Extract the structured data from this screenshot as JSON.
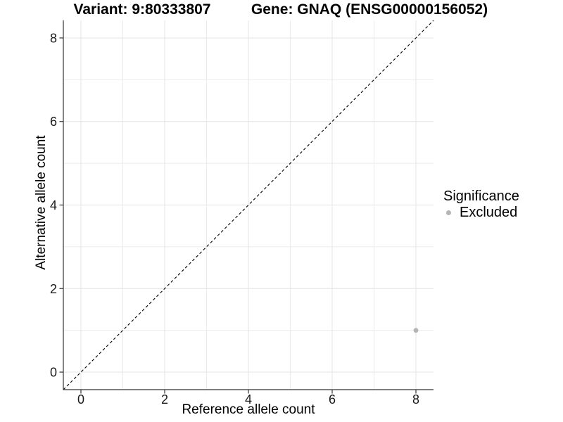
{
  "header": {
    "variant_title": "Variant: 9:80333807",
    "gene_title": "Gene: GNAQ (ENSG00000156052)"
  },
  "chart_data": {
    "type": "scatter",
    "title": "Variant: 9:80333807 — Gene: GNAQ (ENSG00000156052)",
    "xlabel": "Reference allele count",
    "ylabel": "Alternative allele count",
    "xlim": [
      -0.42,
      8.42
    ],
    "ylim": [
      -0.42,
      8.42
    ],
    "x_ticks": [
      0,
      2,
      4,
      6,
      8
    ],
    "y_ticks": [
      0,
      2,
      4,
      6,
      8
    ],
    "x_minor_gridlines": [
      1,
      3,
      5,
      7
    ],
    "y_minor_gridlines": [
      1,
      3,
      5,
      7
    ],
    "grid": true,
    "identity_line": {
      "equation": "y = x",
      "style": "dashed",
      "color": "#000000"
    },
    "series": [
      {
        "name": "Excluded",
        "color": "#b5b5b5",
        "points": [
          {
            "x": 8,
            "y": 1
          }
        ]
      }
    ],
    "legend": {
      "title": "Significance",
      "position": "right",
      "entries": [
        {
          "label": "Excluded",
          "color": "#b5b5b5"
        }
      ]
    }
  },
  "style": {
    "background": "#ffffff",
    "major_grid_color": "#e4e4e4",
    "minor_grid_color": "#ebebeb",
    "axis_line_color": "#333333",
    "tick_label_color": "#1a1a1a",
    "text_color": "#000000"
  }
}
